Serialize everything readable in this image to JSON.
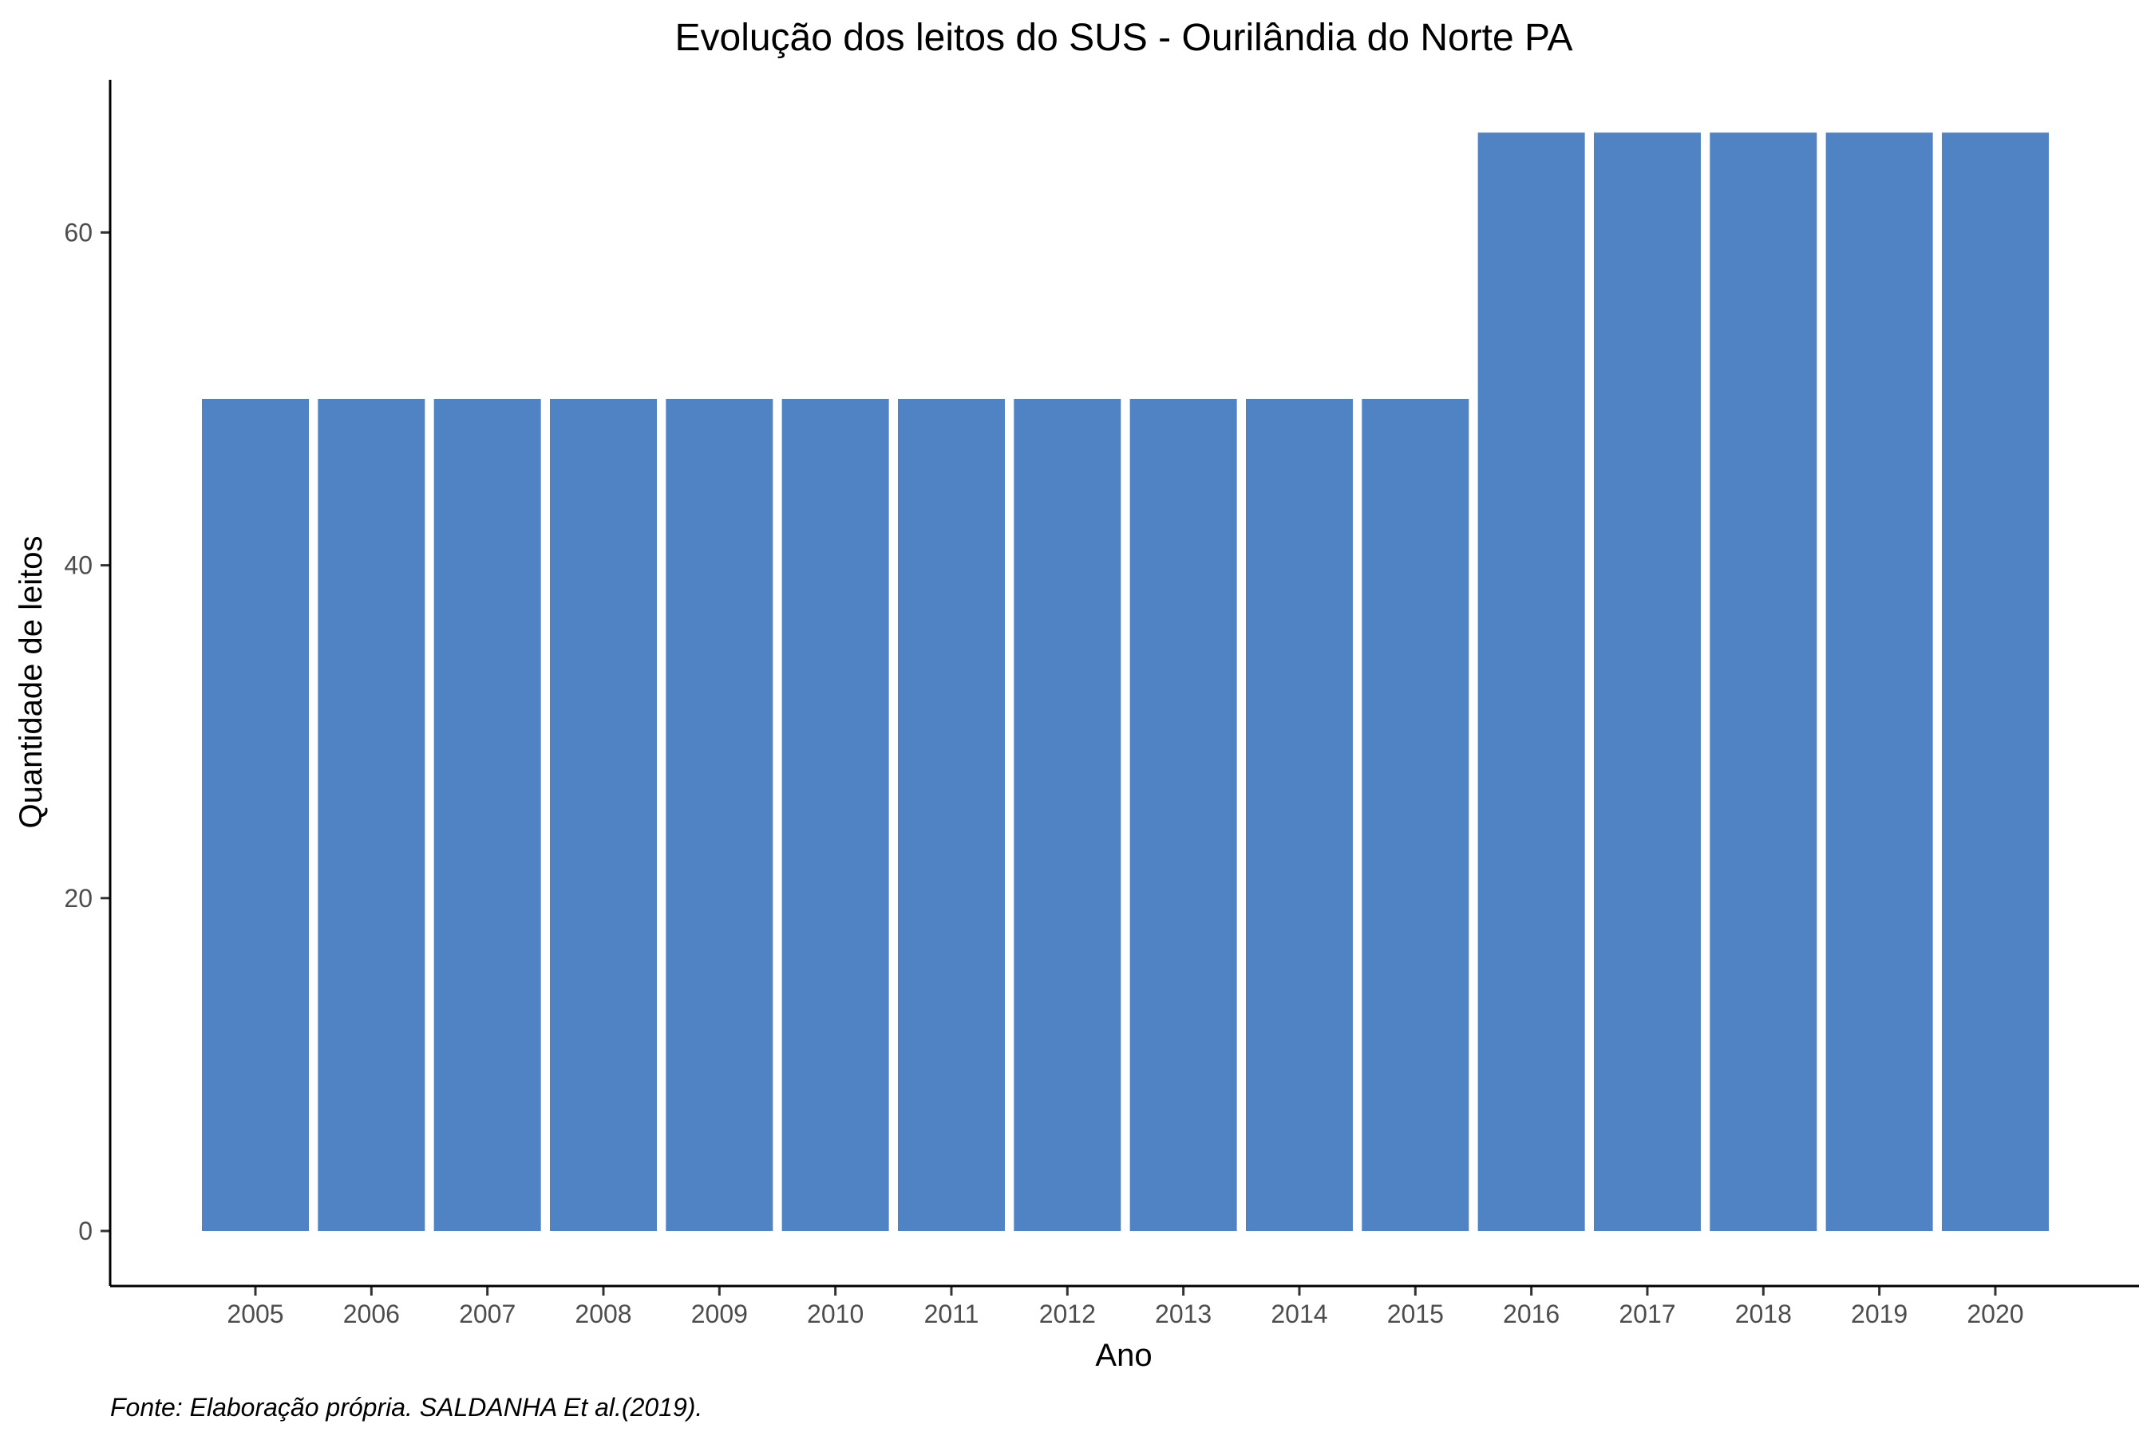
{
  "chart_data": {
    "type": "bar",
    "title": "Evolução dos leitos do SUS -  Ourilândia do Norte PA",
    "xlabel": "Ano",
    "ylabel": "Quantidade de leitos",
    "categories": [
      "2005",
      "2006",
      "2007",
      "2008",
      "2009",
      "2010",
      "2011",
      "2012",
      "2013",
      "2014",
      "2015",
      "2016",
      "2017",
      "2018",
      "2019",
      "2020"
    ],
    "values": [
      50,
      50,
      50,
      50,
      50,
      50,
      50,
      50,
      50,
      50,
      50,
      66,
      66,
      66,
      66,
      66
    ],
    "ylim": [
      0,
      69
    ],
    "yticks": [
      0,
      20,
      40,
      60
    ],
    "grid": false,
    "legend": "none",
    "bar_color": "#4f83c3",
    "caption": "Fonte: Elaboração própria. SALDANHA Et al.(2019)."
  }
}
